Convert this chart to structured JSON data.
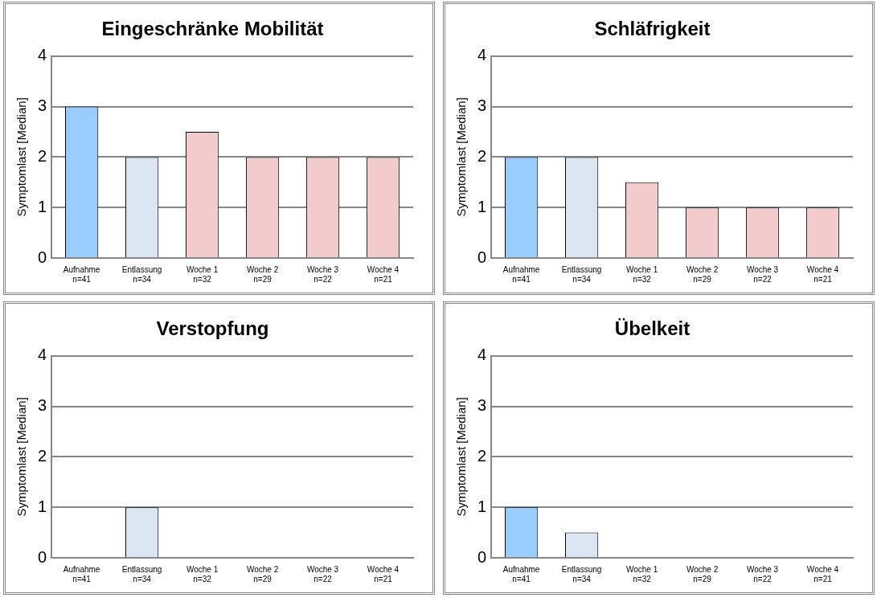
{
  "chart_data": [
    {
      "type": "bar",
      "title": "Eingeschränke Mobilität",
      "ylabel": "Symptomlast [Median]",
      "categories": [
        "Aufnahme\nn=41",
        "Entlassung\nn=34",
        "Woche 1\nn=32",
        "Woche 2\nn=29",
        "Woche 3\nn=22",
        "Woche 4\nn=21"
      ],
      "values": [
        3,
        2,
        2.5,
        2,
        2,
        2
      ],
      "colors": [
        "#99ccff",
        "#dce6f2",
        "#f2cccc",
        "#f2cccc",
        "#f2cccc",
        "#f2cccc"
      ],
      "ylim": [
        0,
        4
      ],
      "yticks": [
        0,
        1,
        2,
        3,
        4
      ],
      "grid": "y",
      "legend": false
    },
    {
      "type": "bar",
      "title": "Schläfrigkeit",
      "ylabel": "Symptomlast [Median]",
      "categories": [
        "Aufnahme\nn=41",
        "Entlassung\nn=34",
        "Woche 1\nn=32",
        "Woche 2\nn=29",
        "Woche 3\nn=22",
        "Woche 4\nn=21"
      ],
      "values": [
        2,
        2,
        1.5,
        1,
        1,
        1
      ],
      "colors": [
        "#99ccff",
        "#dce6f2",
        "#f2cccc",
        "#f2cccc",
        "#f2cccc",
        "#f2cccc"
      ],
      "ylim": [
        0,
        4
      ],
      "yticks": [
        0,
        1,
        2,
        3,
        4
      ],
      "grid": "y",
      "legend": false
    },
    {
      "type": "bar",
      "title": "Verstopfung",
      "ylabel": "Symptomlast [Median]",
      "categories": [
        "Aufnahme\nn=41",
        "Entlassung\nn=34",
        "Woche 1\nn=32",
        "Woche 2\nn=29",
        "Woche 3\nn=22",
        "Woche 4\nn=21"
      ],
      "values": [
        0,
        1,
        0,
        0,
        0,
        0
      ],
      "colors": [
        "#99ccff",
        "#dce6f2",
        "#f2cccc",
        "#f2cccc",
        "#f2cccc",
        "#f2cccc"
      ],
      "ylim": [
        0,
        4
      ],
      "yticks": [
        0,
        1,
        2,
        3,
        4
      ],
      "grid": "y",
      "legend": false
    },
    {
      "type": "bar",
      "title": "Übelkeit",
      "ylabel": "Symptomlast [Median]",
      "categories": [
        "Aufnahme\nn=41",
        "Entlassung\nn=34",
        "Woche 1\nn=32",
        "Woche 2\nn=29",
        "Woche 3\nn=22",
        "Woche 4\nn=21"
      ],
      "values": [
        1,
        0.5,
        0,
        0,
        0,
        0
      ],
      "colors": [
        "#99ccff",
        "#dce6f2",
        "#f2cccc",
        "#f2cccc",
        "#f2cccc",
        "#f2cccc"
      ],
      "ylim": [
        0,
        4
      ],
      "yticks": [
        0,
        1,
        2,
        3,
        4
      ],
      "grid": "y",
      "legend": false
    }
  ]
}
